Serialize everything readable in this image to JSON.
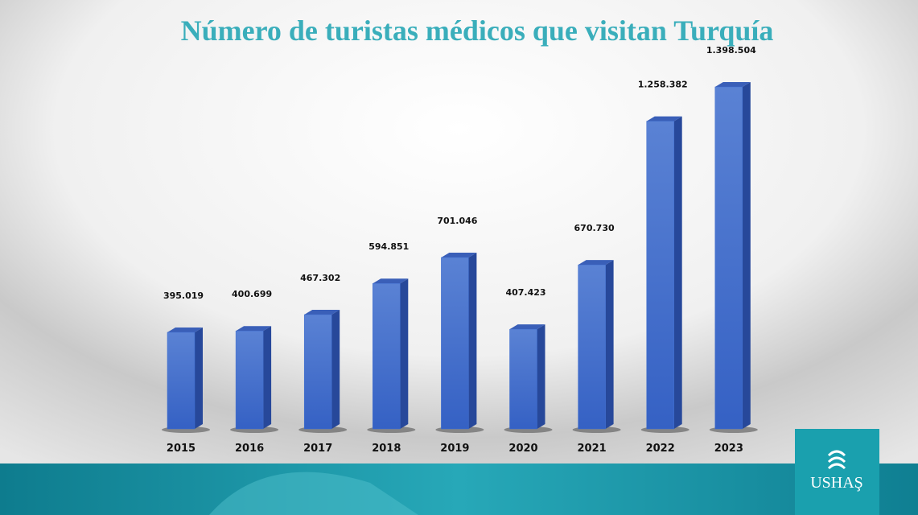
{
  "chart_data": {
    "type": "bar3d",
    "title": "Número de turistas médicos que visitan Turquía",
    "categories": [
      "2015",
      "2016",
      "2017",
      "2018",
      "2019",
      "2020",
      "2021",
      "2022",
      "2023"
    ],
    "values": [
      395019,
      400699,
      467302,
      594851,
      701046,
      407423,
      670730,
      1258382,
      1398504
    ],
    "value_labels": [
      "395.019",
      "400.699",
      "467.302",
      "594.851",
      "701.046",
      "407.423",
      "670.730",
      "1.258.382",
      "1.398.504"
    ],
    "color": "#3f6ed0"
  },
  "logo": {
    "text": "USHAŞ"
  }
}
